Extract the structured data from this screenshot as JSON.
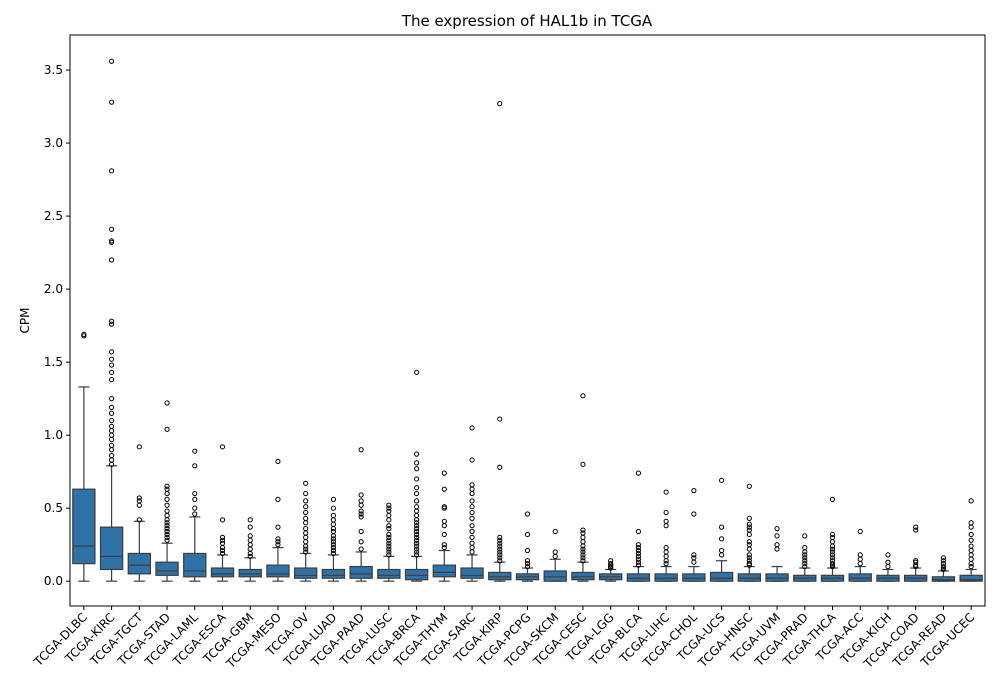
{
  "chart_data": {
    "type": "box",
    "title": "The expression of HAL1b in TCGA",
    "xlabel": "",
    "ylabel": "CPM",
    "ylim": [
      -0.17,
      3.74
    ],
    "yticks": [
      0.0,
      0.5,
      1.0,
      1.5,
      2.0,
      2.5,
      3.0,
      3.5
    ],
    "ytick_labels": [
      "0.0",
      "0.5",
      "1.0",
      "1.5",
      "2.0",
      "2.5",
      "3.0",
      "3.5"
    ],
    "grid": false,
    "legend": "none",
    "box_color": "#2f72a8",
    "categories": [
      "TCGA-DLBC",
      "TCGA-KIRC",
      "TCGA-TGCT",
      "TCGA-STAD",
      "TCGA-LAML",
      "TCGA-ESCA",
      "TCGA-GBM",
      "TCGA-MESO",
      "TCGA-OV",
      "TCGA-LUAD",
      "TCGA-PAAD",
      "TCGA-LUSC",
      "TCGA-BRCA",
      "TCGA-THYM",
      "TCGA-SARC",
      "TCGA-KIRP",
      "TCGA-PCPG",
      "TCGA-SKCM",
      "TCGA-CESC",
      "TCGA-LGG",
      "TCGA-BLCA",
      "TCGA-LIHC",
      "TCGA-CHOL",
      "TCGA-UCS",
      "TCGA-HNSC",
      "TCGA-UVM",
      "TCGA-PRAD",
      "TCGA-THCA",
      "TCGA-ACC",
      "TCGA-KICH",
      "TCGA-COAD",
      "TCGA-READ",
      "TCGA-UCEC"
    ],
    "boxes": [
      {
        "whislo": 0.0,
        "q1": 0.12,
        "med": 0.24,
        "q3": 0.63,
        "whishi": 1.33,
        "fliers": [
          1.68,
          1.69
        ]
      },
      {
        "whislo": 0.0,
        "q1": 0.08,
        "med": 0.17,
        "q3": 0.37,
        "whishi": 0.79,
        "fliers": [
          0.8,
          0.83,
          0.86,
          0.9,
          0.93,
          0.97,
          1.0,
          1.03,
          1.06,
          1.1,
          1.15,
          1.19,
          1.25,
          1.38,
          1.43,
          1.48,
          1.52,
          1.57,
          1.76,
          1.78,
          2.2,
          2.32,
          2.33,
          2.41,
          2.81,
          3.28,
          3.56
        ]
      },
      {
        "whislo": 0.0,
        "q1": 0.05,
        "med": 0.11,
        "q3": 0.19,
        "whishi": 0.41,
        "fliers": [
          0.42,
          0.52,
          0.55,
          0.57,
          0.92
        ]
      },
      {
        "whislo": 0.0,
        "q1": 0.04,
        "med": 0.07,
        "q3": 0.13,
        "whishi": 0.26,
        "fliers": [
          0.28,
          0.3,
          0.32,
          0.34,
          0.36,
          0.38,
          0.4,
          0.42,
          0.45,
          0.48,
          0.52,
          0.56,
          0.6,
          0.63,
          0.65,
          1.04,
          1.22
        ]
      },
      {
        "whislo": 0.0,
        "q1": 0.03,
        "med": 0.07,
        "q3": 0.19,
        "whishi": 0.44,
        "fliers": [
          0.46,
          0.5,
          0.56,
          0.6,
          0.79,
          0.89
        ]
      },
      {
        "whislo": 0.0,
        "q1": 0.03,
        "med": 0.05,
        "q3": 0.09,
        "whishi": 0.18,
        "fliers": [
          0.19,
          0.21,
          0.23,
          0.26,
          0.28,
          0.3,
          0.42,
          0.92
        ]
      },
      {
        "whislo": 0.0,
        "q1": 0.03,
        "med": 0.05,
        "q3": 0.08,
        "whishi": 0.16,
        "fliers": [
          0.17,
          0.19,
          0.22,
          0.25,
          0.28,
          0.31,
          0.37,
          0.42
        ]
      },
      {
        "whislo": 0.0,
        "q1": 0.03,
        "med": 0.05,
        "q3": 0.11,
        "whishi": 0.23,
        "fliers": [
          0.25,
          0.27,
          0.29,
          0.37,
          0.56,
          0.82
        ]
      },
      {
        "whislo": 0.0,
        "q1": 0.02,
        "med": 0.04,
        "q3": 0.09,
        "whishi": 0.19,
        "fliers": [
          0.2,
          0.22,
          0.24,
          0.27,
          0.3,
          0.33,
          0.36,
          0.4,
          0.43,
          0.47,
          0.51,
          0.55,
          0.6,
          0.67
        ]
      },
      {
        "whislo": 0.0,
        "q1": 0.02,
        "med": 0.04,
        "q3": 0.08,
        "whishi": 0.18,
        "fliers": [
          0.19,
          0.21,
          0.23,
          0.25,
          0.27,
          0.29,
          0.31,
          0.34,
          0.36,
          0.39,
          0.42,
          0.45,
          0.5,
          0.56
        ]
      },
      {
        "whislo": 0.0,
        "q1": 0.02,
        "med": 0.05,
        "q3": 0.1,
        "whishi": 0.2,
        "fliers": [
          0.22,
          0.27,
          0.34,
          0.44,
          0.46,
          0.48,
          0.52,
          0.55,
          0.59,
          0.9
        ]
      },
      {
        "whislo": 0.0,
        "q1": 0.02,
        "med": 0.04,
        "q3": 0.08,
        "whishi": 0.17,
        "fliers": [
          0.18,
          0.2,
          0.22,
          0.24,
          0.26,
          0.28,
          0.3,
          0.32,
          0.36,
          0.38,
          0.42,
          0.45,
          0.48,
          0.5,
          0.52
        ]
      },
      {
        "whislo": 0.0,
        "q1": 0.01,
        "med": 0.04,
        "q3": 0.08,
        "whishi": 0.17,
        "fliers": [
          0.18,
          0.2,
          0.22,
          0.24,
          0.26,
          0.28,
          0.3,
          0.32,
          0.34,
          0.36,
          0.38,
          0.4,
          0.42,
          0.45,
          0.48,
          0.51,
          0.55,
          0.6,
          0.64,
          0.7,
          0.77,
          0.81,
          0.87,
          1.43
        ]
      },
      {
        "whislo": 0.0,
        "q1": 0.03,
        "med": 0.06,
        "q3": 0.11,
        "whishi": 0.21,
        "fliers": [
          0.23,
          0.25,
          0.32,
          0.38,
          0.41,
          0.5,
          0.51,
          0.63,
          0.74
        ]
      },
      {
        "whislo": 0.0,
        "q1": 0.02,
        "med": 0.04,
        "q3": 0.09,
        "whishi": 0.18,
        "fliers": [
          0.2,
          0.23,
          0.26,
          0.3,
          0.34,
          0.38,
          0.43,
          0.47,
          0.51,
          0.55,
          0.6,
          0.63,
          0.66,
          0.83,
          1.05
        ]
      },
      {
        "whislo": 0.0,
        "q1": 0.01,
        "med": 0.03,
        "q3": 0.06,
        "whishi": 0.13,
        "fliers": [
          0.14,
          0.16,
          0.18,
          0.2,
          0.22,
          0.24,
          0.26,
          0.28,
          0.3,
          0.78,
          1.11,
          3.27
        ]
      },
      {
        "whislo": 0.0,
        "q1": 0.01,
        "med": 0.03,
        "q3": 0.05,
        "whishi": 0.09,
        "fliers": [
          0.1,
          0.12,
          0.14,
          0.21,
          0.32,
          0.46
        ]
      },
      {
        "whislo": 0.0,
        "q1": 0.0,
        "med": 0.03,
        "q3": 0.07,
        "whishi": 0.15,
        "fliers": [
          0.17,
          0.2,
          0.34
        ]
      },
      {
        "whislo": 0.0,
        "q1": 0.01,
        "med": 0.03,
        "q3": 0.06,
        "whishi": 0.13,
        "fliers": [
          0.14,
          0.16,
          0.18,
          0.2,
          0.22,
          0.24,
          0.27,
          0.3,
          0.33,
          0.35,
          0.8,
          1.27
        ]
      },
      {
        "whislo": 0.0,
        "q1": 0.01,
        "med": 0.03,
        "q3": 0.05,
        "whishi": 0.08,
        "fliers": [
          0.09,
          0.1,
          0.11,
          0.12,
          0.14
        ]
      },
      {
        "whislo": 0.0,
        "q1": 0.0,
        "med": 0.02,
        "q3": 0.05,
        "whishi": 0.1,
        "fliers": [
          0.11,
          0.13,
          0.15,
          0.17,
          0.19,
          0.21,
          0.23,
          0.25,
          0.34,
          0.74
        ]
      },
      {
        "whislo": 0.0,
        "q1": 0.0,
        "med": 0.02,
        "q3": 0.05,
        "whishi": 0.1,
        "fliers": [
          0.12,
          0.14,
          0.17,
          0.2,
          0.23,
          0.38,
          0.41,
          0.47,
          0.61
        ]
      },
      {
        "whislo": 0.0,
        "q1": 0.0,
        "med": 0.02,
        "q3": 0.05,
        "whishi": 0.1,
        "fliers": [
          0.13,
          0.16,
          0.18,
          0.46,
          0.62
        ]
      },
      {
        "whislo": 0.0,
        "q1": 0.0,
        "med": 0.02,
        "q3": 0.06,
        "whishi": 0.14,
        "fliers": [
          0.18,
          0.21,
          0.29,
          0.37,
          0.69
        ]
      },
      {
        "whislo": 0.0,
        "q1": 0.0,
        "med": 0.02,
        "q3": 0.05,
        "whishi": 0.1,
        "fliers": [
          0.11,
          0.12,
          0.14,
          0.16,
          0.18,
          0.22,
          0.25,
          0.27,
          0.32,
          0.35,
          0.37,
          0.39,
          0.43,
          0.65
        ]
      },
      {
        "whislo": 0.0,
        "q1": 0.0,
        "med": 0.02,
        "q3": 0.05,
        "whishi": 0.1,
        "fliers": [
          0.22,
          0.25,
          0.31,
          0.36
        ]
      },
      {
        "whislo": 0.0,
        "q1": 0.0,
        "med": 0.02,
        "q3": 0.04,
        "whishi": 0.09,
        "fliers": [
          0.1,
          0.12,
          0.14,
          0.16,
          0.18,
          0.2,
          0.23,
          0.31
        ]
      },
      {
        "whislo": 0.0,
        "q1": 0.0,
        "med": 0.02,
        "q3": 0.04,
        "whishi": 0.09,
        "fliers": [
          0.1,
          0.11,
          0.12,
          0.14,
          0.16,
          0.18,
          0.2,
          0.22,
          0.24,
          0.27,
          0.3,
          0.32,
          0.56
        ]
      },
      {
        "whislo": 0.0,
        "q1": 0.0,
        "med": 0.02,
        "q3": 0.05,
        "whishi": 0.1,
        "fliers": [
          0.12,
          0.15,
          0.18,
          0.34
        ]
      },
      {
        "whislo": 0.0,
        "q1": 0.0,
        "med": 0.02,
        "q3": 0.04,
        "whishi": 0.08,
        "fliers": [
          0.1,
          0.13,
          0.18
        ]
      },
      {
        "whislo": 0.0,
        "q1": 0.0,
        "med": 0.02,
        "q3": 0.04,
        "whishi": 0.09,
        "fliers": [
          0.1,
          0.11,
          0.13,
          0.14,
          0.35,
          0.37
        ]
      },
      {
        "whislo": 0.0,
        "q1": 0.0,
        "med": 0.01,
        "q3": 0.03,
        "whishi": 0.07,
        "fliers": [
          0.08,
          0.09,
          0.1,
          0.12,
          0.14,
          0.16
        ]
      },
      {
        "whislo": 0.0,
        "q1": 0.0,
        "med": 0.01,
        "q3": 0.04,
        "whishi": 0.08,
        "fliers": [
          0.1,
          0.12,
          0.15,
          0.18,
          0.21,
          0.24,
          0.28,
          0.32,
          0.37,
          0.4,
          0.55
        ]
      }
    ]
  }
}
